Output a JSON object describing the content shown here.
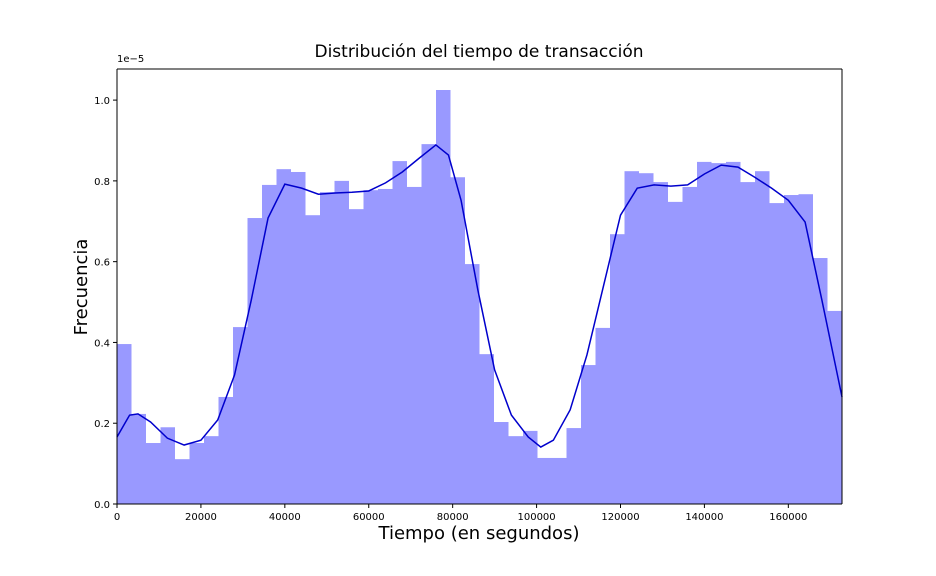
{
  "chart_data": {
    "type": "histogram",
    "title": "Distribución del tiempo de transacción",
    "x_label": "Tiempo (en segundos)",
    "y_label": "Frecuencia",
    "y_offset_label": "1e−5",
    "color": "#9999ff",
    "bins": [
      0,
      3456,
      6912,
      10368,
      13823,
      17279,
      20735,
      24191,
      27647,
      31103,
      34558,
      38014,
      41470,
      44926,
      48382,
      51838,
      55293,
      58749,
      62205,
      65661,
      69117,
      72573,
      76028,
      79484,
      82940,
      86396,
      89852,
      93308,
      96764,
      100219,
      103675,
      107131,
      110587,
      114043,
      117499,
      120954,
      124410,
      127866,
      131322,
      134778,
      138234,
      141689,
      145145,
      148601,
      152057,
      155513,
      158969,
      162424,
      165880,
      169336,
      172792
    ],
    "values": [
      0.396,
      0.223,
      0.151,
      0.19,
      0.111,
      0.151,
      0.168,
      0.265,
      0.438,
      0.708,
      0.79,
      0.829,
      0.822,
      0.715,
      0.772,
      0.8,
      0.73,
      0.777,
      0.78,
      0.849,
      0.785,
      0.891,
      1.025,
      0.809,
      0.594,
      0.371,
      0.203,
      0.168,
      0.181,
      0.114,
      0.114,
      0.188,
      0.344,
      0.436,
      0.668,
      0.824,
      0.819,
      0.797,
      0.748,
      0.785,
      0.847,
      0.844,
      0.847,
      0.797,
      0.824,
      0.745,
      0.765,
      0.767,
      0.609,
      0.478
    ],
    "kde": {
      "color": "#0000cc",
      "x": [
        0,
        3000,
        5000,
        8000,
        12000,
        16000,
        20000,
        24000,
        28000,
        32000,
        36000,
        40000,
        44000,
        48000,
        52000,
        56000,
        60000,
        64000,
        68000,
        72000,
        76000,
        79000,
        82000,
        86000,
        90000,
        94000,
        98000,
        101000,
        104000,
        108000,
        112000,
        116000,
        120000,
        124000,
        128000,
        132000,
        136000,
        140000,
        144000,
        148000,
        152000,
        156000,
        160000,
        164000,
        168000,
        172792
      ],
      "values": [
        0.166,
        0.22,
        0.223,
        0.203,
        0.163,
        0.146,
        0.158,
        0.208,
        0.319,
        0.505,
        0.708,
        0.792,
        0.782,
        0.767,
        0.77,
        0.772,
        0.775,
        0.795,
        0.822,
        0.856,
        0.889,
        0.864,
        0.752,
        0.53,
        0.332,
        0.22,
        0.166,
        0.141,
        0.158,
        0.233,
        0.369,
        0.542,
        0.715,
        0.782,
        0.79,
        0.787,
        0.79,
        0.817,
        0.839,
        0.834,
        0.809,
        0.782,
        0.752,
        0.698,
        0.505,
        0.265
      ]
    },
    "xlim": [
      0,
      172792
    ],
    "ylim": [
      0,
      1.077
    ],
    "xticks": [
      0,
      20000,
      40000,
      60000,
      80000,
      100000,
      120000,
      140000,
      160000
    ],
    "yticks": [
      {
        "value": 0,
        "label": "0.0"
      },
      0.2,
      0.4,
      0.6,
      0.8,
      {
        "value": 1,
        "label": "1.0"
      }
    ]
  }
}
